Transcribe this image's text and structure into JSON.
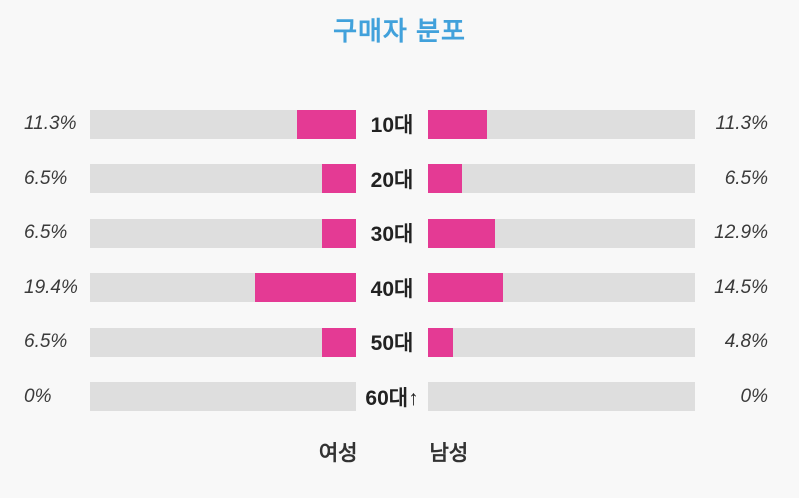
{
  "title": "구매자 분포",
  "legend": {
    "female": "여성",
    "male": "남성"
  },
  "colors": {
    "background": "#f8f8f8",
    "title": "#41a1db",
    "bar": "#e43a94",
    "track": "#dedede",
    "percent_text": "#3a3a3a",
    "age_text": "#222222"
  },
  "rows": [
    {
      "age": "10대",
      "female_pct": "11.3%",
      "male_pct": "11.3%"
    },
    {
      "age": "20대",
      "female_pct": "6.5%",
      "male_pct": "6.5%"
    },
    {
      "age": "30대",
      "female_pct": "6.5%",
      "male_pct": "12.9%"
    },
    {
      "age": "40대",
      "female_pct": "19.4%",
      "male_pct": "14.5%"
    },
    {
      "age": "50대",
      "female_pct": "6.5%",
      "male_pct": "4.8%"
    },
    {
      "age": "60대↑",
      "female_pct": "0%",
      "male_pct": "0%"
    }
  ],
  "chart_data": {
    "type": "bar",
    "subtype": "bidirectional-butterfly",
    "title": "구매자 분포",
    "categories": [
      "10대",
      "20대",
      "30대",
      "40대",
      "50대",
      "60대↑"
    ],
    "series": [
      {
        "key": "female",
        "name": "여성",
        "values": [
          11.3,
          6.5,
          6.5,
          19.4,
          6.5,
          0
        ]
      },
      {
        "key": "male",
        "name": "남성",
        "values": [
          11.3,
          6.5,
          12.9,
          14.5,
          4.8,
          0
        ]
      }
    ],
    "value_unit": "%",
    "axis_labels_position": "outer-edges",
    "category_labels_position": "center",
    "legend_position": "bottom",
    "grid": false,
    "bar_scale_percent_per_point": 1.95
  }
}
